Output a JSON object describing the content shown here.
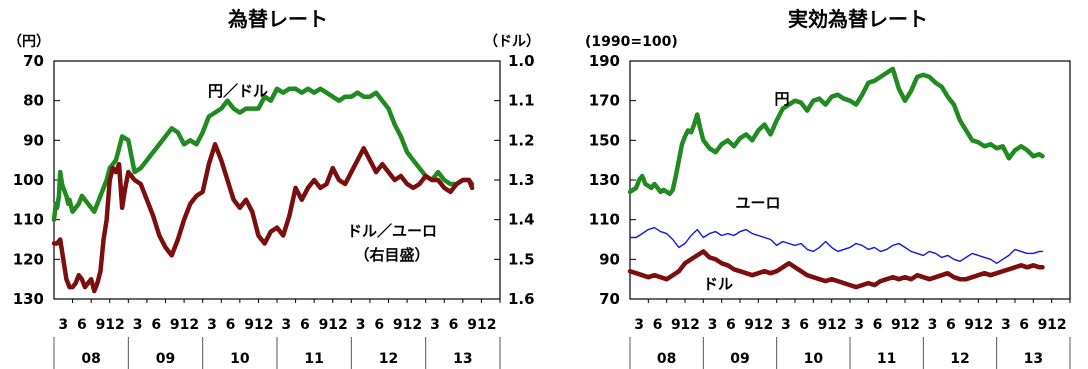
{
  "chart_data": [
    {
      "type": "line",
      "title": "為替レート",
      "left_unit": "（円）",
      "right_unit": "（ドル）",
      "left_axis": {
        "ticks": [
          "70",
          "80",
          "90",
          "100",
          "110",
          "120",
          "130"
        ],
        "range": [
          70,
          130
        ],
        "inverted": true
      },
      "right_axis": {
        "ticks": [
          "1.0",
          "1.1",
          "1.2",
          "1.3",
          "1.4",
          "1.5",
          "1.6"
        ],
        "range": [
          1.0,
          1.6
        ],
        "inverted": true
      },
      "month_labels": [
        "3",
        "6",
        "9",
        "12"
      ],
      "year_labels": [
        "08",
        "09",
        "10",
        "11",
        "12",
        "13"
      ],
      "annotations": {
        "yen": "円／ドル",
        "usd_line1": "ドル／ユーロ",
        "usd_line2": "（右目盛）"
      },
      "series": [
        {
          "key": "yen_usd",
          "color": "#218a21",
          "axis": "left",
          "x": [
            0,
            0.3,
            0.5,
            0.8,
            1,
            1.3,
            1.5,
            2,
            2.3,
            2.5,
            3,
            3.5,
            4,
            4.5,
            5,
            5.5,
            6,
            6.5,
            7,
            7.5,
            8,
            8.5,
            9,
            9.5,
            10,
            11,
            12,
            13,
            14,
            15,
            16,
            17,
            18,
            19,
            20,
            21,
            22,
            23,
            24,
            25,
            26,
            27,
            28,
            29,
            30,
            31,
            32,
            33,
            34,
            35,
            36,
            37,
            38,
            39,
            40,
            41,
            42,
            43,
            44,
            45,
            46,
            47,
            48,
            49,
            50,
            51,
            52,
            53,
            54,
            55,
            56,
            57,
            58,
            59,
            60,
            61,
            62,
            63,
            64,
            65,
            66,
            67,
            67.5
          ],
          "values": [
            110,
            106,
            107,
            104,
            98,
            101,
            102,
            104,
            106,
            105,
            108,
            107,
            106,
            104,
            105,
            106,
            107,
            108,
            106,
            104,
            102,
            100,
            97,
            96,
            95,
            89,
            90,
            98,
            97,
            95,
            93,
            91,
            89,
            87,
            88,
            91,
            90,
            91,
            88,
            84,
            83,
            82,
            80,
            82,
            83,
            82,
            82,
            82,
            79,
            80,
            77,
            78,
            77,
            77,
            78,
            77,
            78,
            77,
            78,
            79,
            80,
            79,
            79,
            78,
            79,
            79,
            78,
            80,
            82,
            86,
            89,
            93,
            95,
            97,
            99,
            100,
            98,
            100,
            101,
            101,
            100,
            100,
            101
          ]
        },
        {
          "key": "usd_eur",
          "color": "#7b0e0e",
          "axis": "right",
          "x": [
            0,
            0.5,
            1,
            1.5,
            2,
            2.5,
            3,
            3.5,
            4,
            4.5,
            5,
            5.5,
            6,
            6.5,
            7,
            7.5,
            8,
            8.5,
            9,
            9.5,
            10,
            10.5,
            11,
            11.5,
            12,
            13,
            14,
            15,
            16,
            17,
            18,
            19,
            20,
            21,
            22,
            23,
            24,
            25,
            26,
            27,
            28,
            29,
            30,
            31,
            32,
            33,
            34,
            35,
            36,
            37,
            38,
            39,
            40,
            41,
            42,
            43,
            44,
            45,
            46,
            47,
            48,
            49,
            50,
            51,
            52,
            53,
            54,
            55,
            56,
            57,
            58,
            59,
            60,
            61,
            62,
            63,
            64,
            65,
            66,
            67,
            67.5
          ],
          "values": [
            1.46,
            1.46,
            1.45,
            1.5,
            1.55,
            1.57,
            1.57,
            1.56,
            1.54,
            1.55,
            1.57,
            1.56,
            1.55,
            1.58,
            1.56,
            1.53,
            1.45,
            1.4,
            1.3,
            1.27,
            1.28,
            1.26,
            1.37,
            1.32,
            1.28,
            1.3,
            1.31,
            1.35,
            1.39,
            1.44,
            1.47,
            1.49,
            1.45,
            1.4,
            1.36,
            1.34,
            1.33,
            1.26,
            1.21,
            1.25,
            1.3,
            1.35,
            1.37,
            1.35,
            1.38,
            1.44,
            1.46,
            1.43,
            1.42,
            1.44,
            1.39,
            1.32,
            1.35,
            1.32,
            1.3,
            1.32,
            1.31,
            1.27,
            1.3,
            1.31,
            1.28,
            1.25,
            1.22,
            1.25,
            1.28,
            1.26,
            1.28,
            1.3,
            1.29,
            1.31,
            1.32,
            1.31,
            1.29,
            1.3,
            1.3,
            1.32,
            1.33,
            1.31,
            1.3,
            1.3,
            1.32
          ]
        }
      ]
    },
    {
      "type": "line",
      "title": "実効為替レート",
      "left_unit": "(1990=100)",
      "left_axis": {
        "ticks": [
          "190",
          "170",
          "150",
          "130",
          "110",
          "90",
          "70"
        ],
        "range": [
          70,
          190
        ]
      },
      "month_labels": [
        "3",
        "6",
        "9",
        "12"
      ],
      "year_labels": [
        "08",
        "09",
        "10",
        "11",
        "12",
        "13"
      ],
      "annotations": {
        "yen": "円",
        "eur": "ユーロ",
        "usd": "ドル"
      },
      "series": [
        {
          "key": "yen",
          "color": "#218a21",
          "x": [
            0,
            0.5,
            1,
            1.5,
            2,
            2.5,
            3,
            3.5,
            4,
            4.5,
            5,
            5.5,
            6,
            6.5,
            7,
            7.5,
            8,
            8.5,
            9,
            9.5,
            10,
            10.5,
            11,
            11.5,
            12,
            13,
            14,
            15,
            16,
            17,
            18,
            19,
            20,
            21,
            22,
            23,
            24,
            25,
            26,
            27,
            28,
            29,
            30,
            31,
            32,
            33,
            34,
            35,
            36,
            37,
            38,
            39,
            40,
            41,
            42,
            43,
            44,
            45,
            46,
            47,
            48,
            49,
            50,
            51,
            52,
            53,
            54,
            55,
            56,
            57,
            58,
            59,
            60,
            61,
            62,
            63,
            64,
            65,
            66,
            67,
            67.5
          ],
          "values": [
            124,
            125,
            126,
            130,
            132,
            128,
            127,
            126,
            128,
            126,
            124,
            125,
            124,
            123,
            125,
            132,
            140,
            148,
            152,
            155,
            154,
            158,
            163,
            156,
            150,
            146,
            144,
            148,
            150,
            147,
            151,
            153,
            150,
            155,
            158,
            153,
            160,
            166,
            168,
            170,
            169,
            165,
            170,
            171,
            168,
            172,
            173,
            171,
            170,
            168,
            173,
            179,
            180,
            182,
            184,
            186,
            176,
            170,
            175,
            182,
            183,
            182,
            179,
            177,
            172,
            168,
            160,
            155,
            150,
            149,
            147,
            148,
            146,
            147,
            141,
            145,
            147,
            145,
            142,
            143,
            142
          ]
        },
        {
          "key": "eur",
          "color": "#1515e0",
          "x": [
            0,
            1,
            2,
            3,
            4,
            5,
            6,
            7,
            8,
            9,
            10,
            11,
            12,
            13,
            14,
            15,
            16,
            17,
            18,
            19,
            20,
            21,
            22,
            23,
            24,
            25,
            26,
            27,
            28,
            29,
            30,
            31,
            32,
            33,
            34,
            35,
            36,
            37,
            38,
            39,
            40,
            41,
            42,
            43,
            44,
            45,
            46,
            47,
            48,
            49,
            50,
            51,
            52,
            53,
            54,
            55,
            56,
            57,
            58,
            59,
            60,
            61,
            62,
            63,
            64,
            65,
            66,
            67,
            67.5
          ],
          "values": [
            101,
            101,
            103,
            105,
            106,
            104,
            103,
            100,
            96,
            98,
            102,
            105,
            101,
            103,
            104,
            102,
            103,
            102,
            104,
            105,
            103,
            102,
            101,
            100,
            97,
            99,
            98,
            97,
            98,
            95,
            94,
            96,
            99,
            96,
            94,
            95,
            96,
            98,
            97,
            95,
            96,
            94,
            95,
            97,
            98,
            96,
            94,
            93,
            92,
            94,
            93,
            91,
            92,
            90,
            89,
            91,
            93,
            92,
            91,
            90,
            88,
            90,
            92,
            95,
            94,
            93,
            93,
            94,
            94
          ]
        },
        {
          "key": "usd",
          "color": "#7b0e0e",
          "x": [
            0,
            1,
            2,
            3,
            4,
            5,
            6,
            7,
            8,
            9,
            10,
            11,
            12,
            13,
            14,
            15,
            16,
            17,
            18,
            19,
            20,
            21,
            22,
            23,
            24,
            25,
            26,
            27,
            28,
            29,
            30,
            31,
            32,
            33,
            34,
            35,
            36,
            37,
            38,
            39,
            40,
            41,
            42,
            43,
            44,
            45,
            46,
            47,
            48,
            49,
            50,
            51,
            52,
            53,
            54,
            55,
            56,
            57,
            58,
            59,
            60,
            61,
            62,
            63,
            64,
            65,
            66,
            67,
            67.5
          ],
          "values": [
            84,
            83,
            82,
            81,
            82,
            81,
            80,
            82,
            84,
            88,
            90,
            92,
            94,
            91,
            90,
            88,
            87,
            85,
            84,
            83,
            82,
            83,
            84,
            83,
            84,
            86,
            88,
            86,
            84,
            82,
            81,
            80,
            79,
            80,
            79,
            78,
            77,
            76,
            77,
            78,
            77,
            79,
            80,
            81,
            80,
            81,
            80,
            82,
            81,
            80,
            81,
            82,
            83,
            81,
            80,
            80,
            81,
            82,
            83,
            82,
            83,
            84,
            85,
            86,
            87,
            86,
            87,
            86,
            86
          ]
        }
      ]
    }
  ]
}
